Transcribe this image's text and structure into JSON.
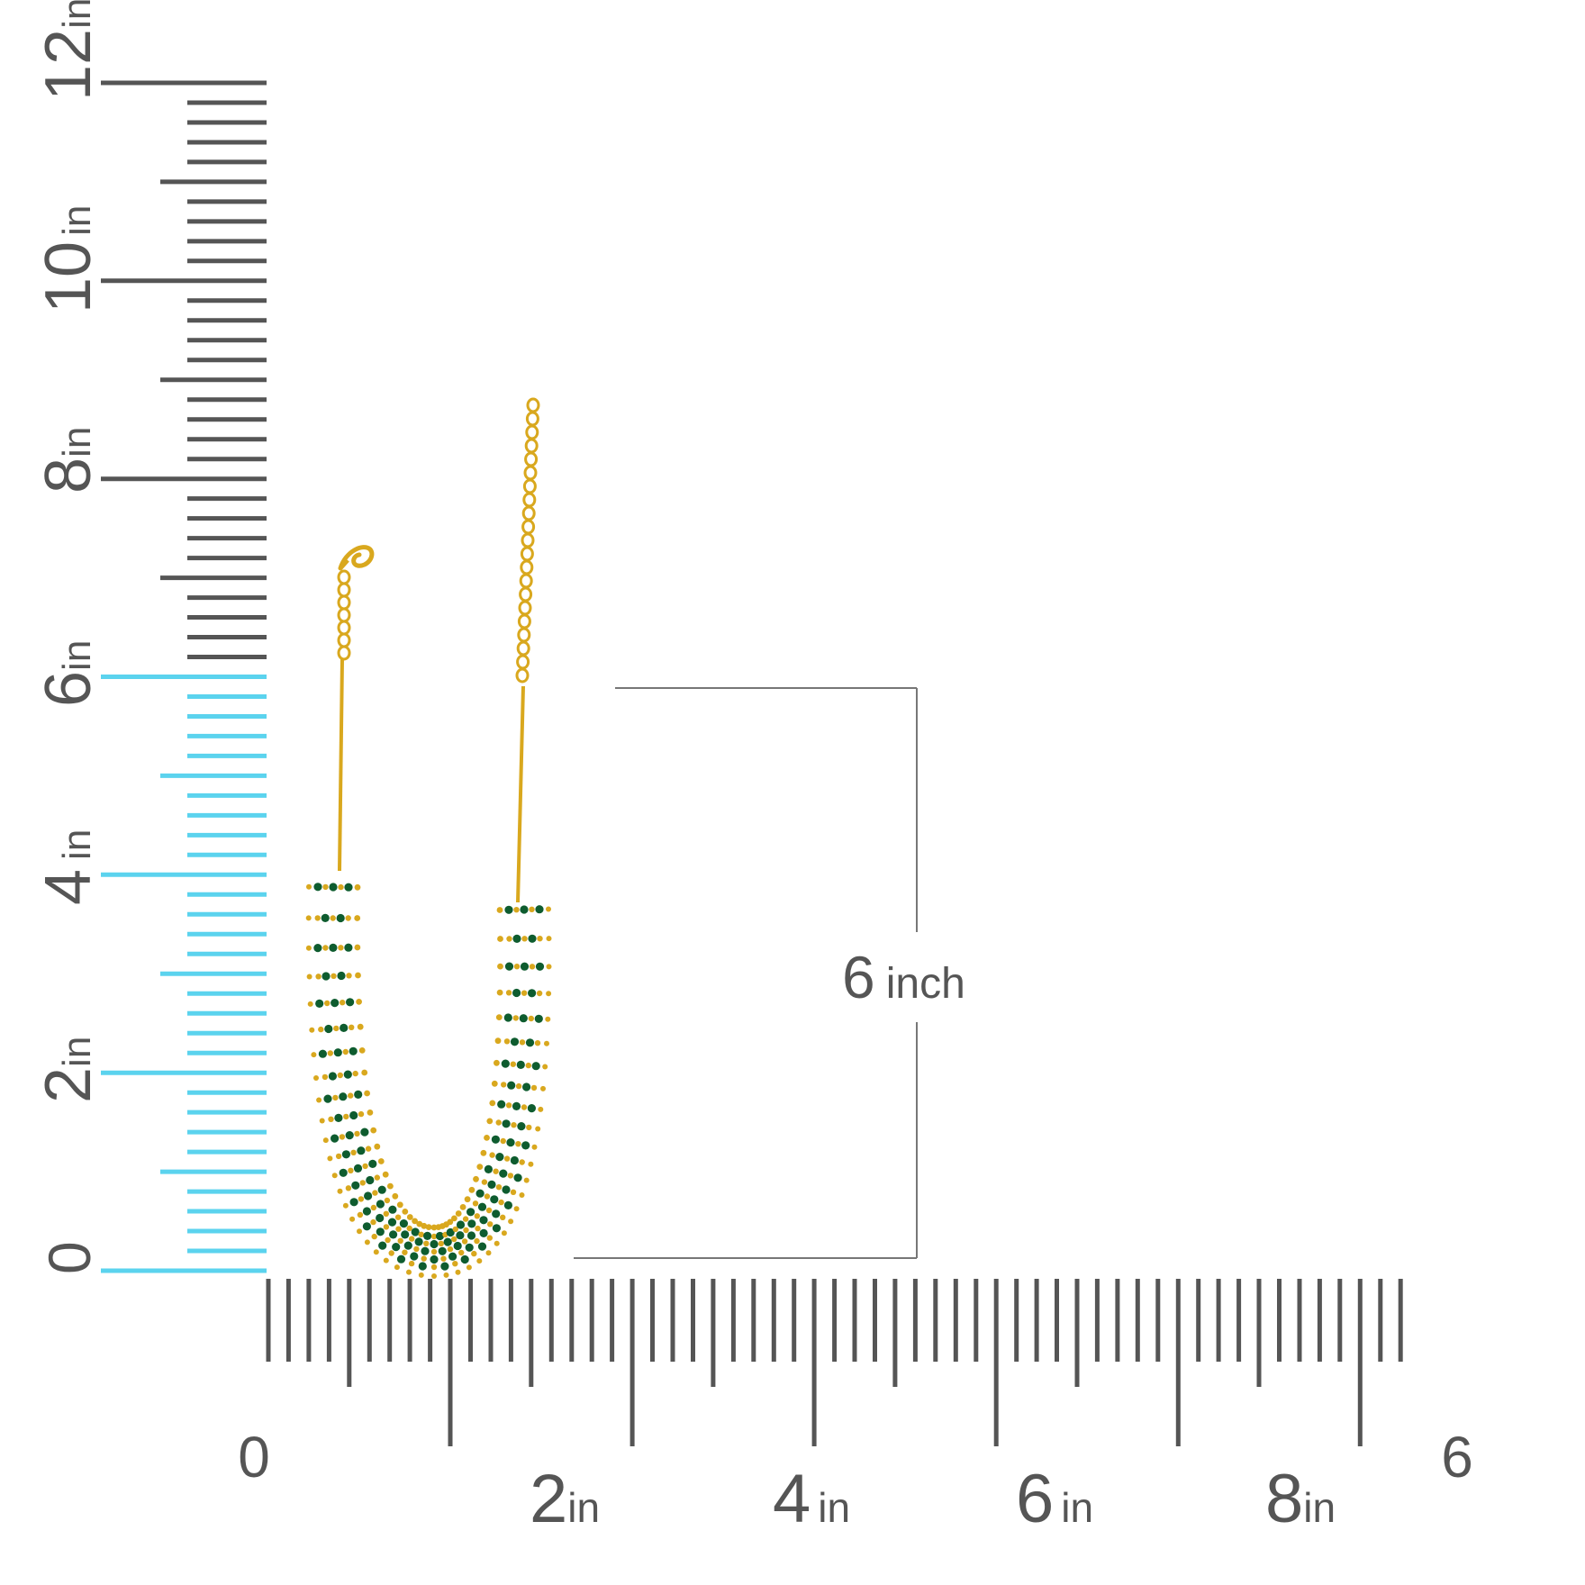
{
  "colors": {
    "background": "#ffffff",
    "ruler_gray": "#555555",
    "ruler_highlight": "#5bd3ee",
    "gold": "#d9a81e",
    "emerald": "#0e5c2f"
  },
  "vertical_ruler": {
    "labels": [
      {
        "number": "0",
        "unit": ""
      },
      {
        "number": "2",
        "unit": "in"
      },
      {
        "number": "4",
        "unit": "in"
      },
      {
        "number": "6",
        "unit": "in"
      },
      {
        "number": "8",
        "unit": "in"
      },
      {
        "number": "10",
        "unit": "in"
      },
      {
        "number": "12",
        "unit": "in"
      }
    ],
    "highlighted_to_in": 6
  },
  "horizontal_ruler": {
    "labels": [
      {
        "number": "0",
        "unit": ""
      },
      {
        "number": "2",
        "unit": "in"
      },
      {
        "number": "4",
        "unit": "in"
      },
      {
        "number": "6",
        "unit": "in"
      },
      {
        "number": "8",
        "unit": "in"
      },
      {
        "number": "6",
        "unit": ""
      }
    ]
  },
  "measurement": {
    "value": "6",
    "unit": "inch"
  },
  "product": {
    "icon": "gold-emerald-necklace-icon"
  }
}
